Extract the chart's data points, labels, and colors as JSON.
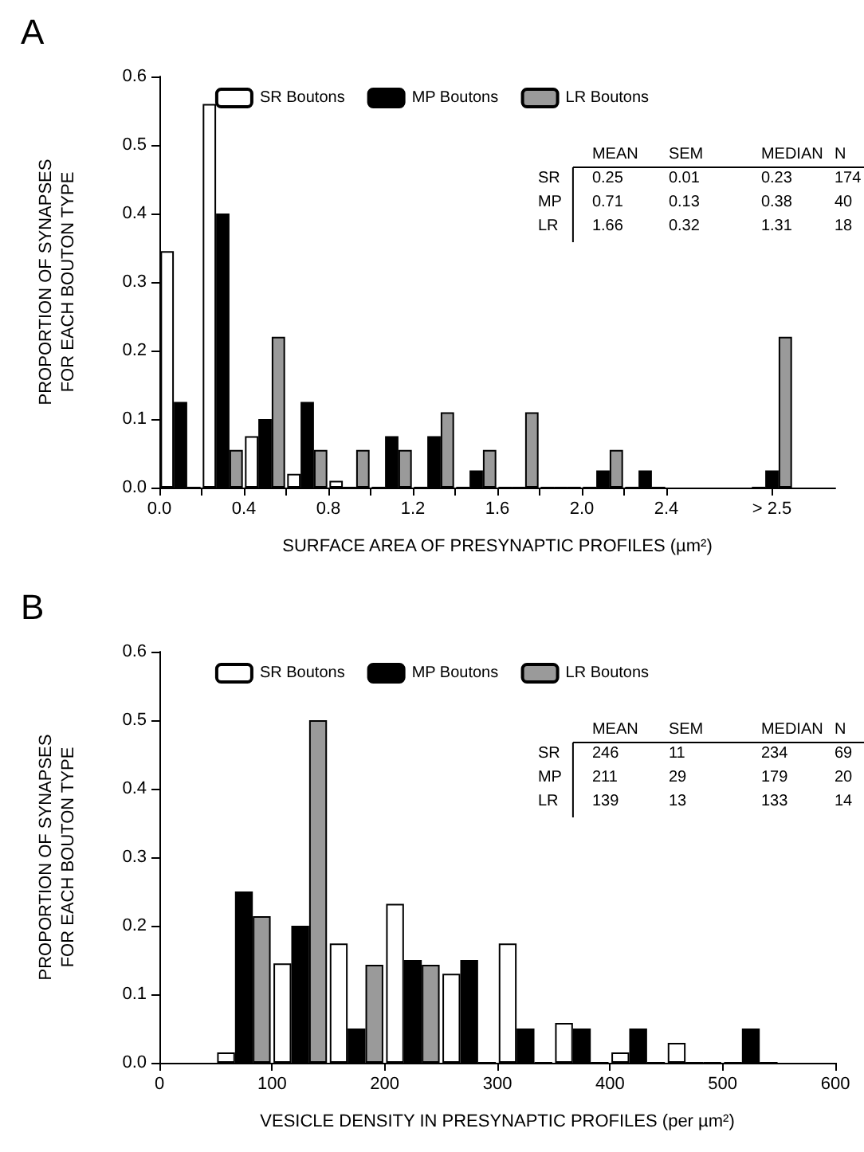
{
  "chart_data": [
    {
      "type": "bar",
      "title": "A",
      "xlabel": "SURFACE AREA OF PRESYNAPTIC PROFILES (µm²)",
      "ylabel": "PROPORTION OF SYNAPSES\nFOR EACH BOUTON TYPE",
      "x": [
        0.1,
        0.3,
        0.5,
        0.7,
        0.9,
        1.1,
        1.3,
        1.5,
        1.7,
        1.9,
        2.1,
        2.3,
        2.9
      ],
      "series": [
        {
          "name": "SR Boutons",
          "color": "#ffffff",
          "values": [
            0.345,
            0.56,
            0.075,
            0.02,
            0.01,
            0,
            0,
            0,
            0,
            0,
            0,
            0,
            0
          ]
        },
        {
          "name": "MP Boutons",
          "color": "#000000",
          "values": [
            0.125,
            0.4,
            0.1,
            0.125,
            0,
            0.075,
            0.075,
            0.025,
            0,
            0,
            0.025,
            0.025,
            0.025
          ]
        },
        {
          "name": "LR Boutons",
          "color": "#9a9a9a",
          "values": [
            0,
            0.055,
            0.22,
            0.055,
            0.055,
            0.055,
            0.11,
            0.055,
            0.11,
            0,
            0.055,
            0,
            0.22
          ]
        }
      ],
      "xlim": [
        0,
        3.2
      ],
      "xticks": [
        {
          "value": 0,
          "label": "0.0"
        },
        {
          "value": 0.2,
          "label": null
        },
        0.4,
        {
          "value": 0.6,
          "label": null
        },
        0.8,
        {
          "value": 1.0,
          "label": null
        },
        1.2,
        {
          "value": 1.4,
          "label": null
        },
        1.6,
        {
          "value": 1.8,
          "label": null
        },
        {
          "value": 2,
          "label": "2.0"
        },
        {
          "value": 2.2,
          "label": null
        },
        2.4,
        {
          "value": 2.9,
          "label": "> 2.5"
        }
      ],
      "ylim": [
        0,
        0.6
      ],
      "yticks": [
        {
          "value": 0,
          "label": "0.0"
        },
        0.1,
        0.2,
        0.3,
        0.4,
        0.5,
        0.6
      ],
      "annotations": [
        "MEAN SEM MEDIAN N",
        "SR 0.25 0.01 0.23 174",
        "MP 0.71 0.13 0.38 40",
        "LR 1.66 0.32 1.31 18"
      ],
      "legend": "top",
      "grid": false
    },
    {
      "type": "bar",
      "title": "B",
      "xlabel": "VESICLE DENSITY IN PRESYNAPTIC PROFILES (per µm²)",
      "ylabel": "PROPORTION OF SYNAPSES\nFOR EACH BOUTON TYPE",
      "x": [
        75,
        125,
        175,
        225,
        275,
        325,
        375,
        425,
        475,
        525
      ],
      "series": [
        {
          "name": "SR Boutons",
          "color": "#ffffff",
          "values": [
            0.015,
            0.145,
            0.174,
            0.232,
            0.13,
            0.174,
            0.058,
            0.015,
            0.029,
            0
          ]
        },
        {
          "name": "MP Boutons",
          "color": "#000000",
          "values": [
            0.25,
            0.2,
            0.05,
            0.15,
            0.15,
            0.05,
            0.05,
            0.05,
            0,
            0.05
          ]
        },
        {
          "name": "LR Boutons",
          "color": "#9a9a9a",
          "values": [
            0.214,
            0.5,
            0.143,
            0.143,
            0,
            0,
            0,
            0,
            0,
            0
          ]
        }
      ],
      "xlim": [
        0,
        600
      ],
      "xticks": [
        0,
        100,
        200,
        300,
        400,
        500,
        600
      ],
      "ylim": [
        0,
        0.6
      ],
      "yticks": [
        {
          "value": 0,
          "label": "0.0"
        },
        0.1,
        0.2,
        0.3,
        0.4,
        0.5,
        0.6
      ],
      "annotations": [
        "MEAN SEM MEDIAN N",
        "SR 246 11 234 69",
        "MP 211 29 179 20",
        "LR 139 13 133 14"
      ],
      "legend": "top",
      "grid": false
    }
  ]
}
